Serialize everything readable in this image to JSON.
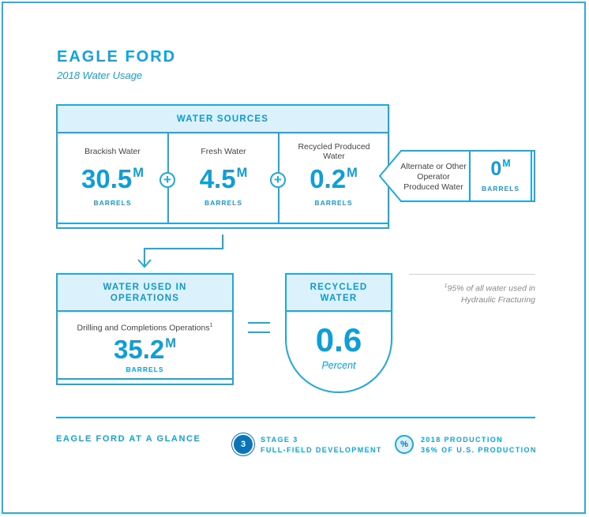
{
  "title": "EAGLE FORD",
  "subtitle": "2018 Water Usage",
  "water_sources": {
    "header": "WATER SOURCES",
    "items": [
      {
        "label": "Brackish Water",
        "value": "30.5",
        "suffix": "M",
        "unit": "BARRELS"
      },
      {
        "label": "Fresh Water",
        "value": "4.5",
        "suffix": "M",
        "unit": "BARRELS"
      },
      {
        "label": "Recycled Produced Water",
        "value": "0.2",
        "suffix": "M",
        "unit": "BARRELS"
      }
    ],
    "plus_symbol": "+"
  },
  "alternate": {
    "label": "Alternate or Other Operator Produced Water",
    "value": "0",
    "suffix": "M",
    "unit": "BARRELS"
  },
  "water_used": {
    "header": "WATER USED IN OPERATIONS",
    "label": "Drilling and Completions Operations",
    "footnote_marker": "1",
    "value": "35.2",
    "suffix": "M",
    "unit": "BARRELS"
  },
  "recycled": {
    "header": "RECYCLED WATER",
    "value": "0.6",
    "unit": "Percent"
  },
  "footnote": {
    "marker": "1",
    "text": "95% of all water used in Hydraulic Fracturing"
  },
  "footer": {
    "heading": "EAGLE FORD AT A GLANCE",
    "stage": {
      "badge": "3",
      "line1": "STAGE 3",
      "line2": "FULL-FIELD DEVELOPMENT"
    },
    "production": {
      "badge": "%",
      "line1": "2018 PRODUCTION",
      "line2": "36% OF U.S. PRODUCTION"
    }
  },
  "colors": {
    "accent": "#1ea9e0",
    "header_fill": "#dbf1fb",
    "badge_dark": "#0b74b8"
  }
}
